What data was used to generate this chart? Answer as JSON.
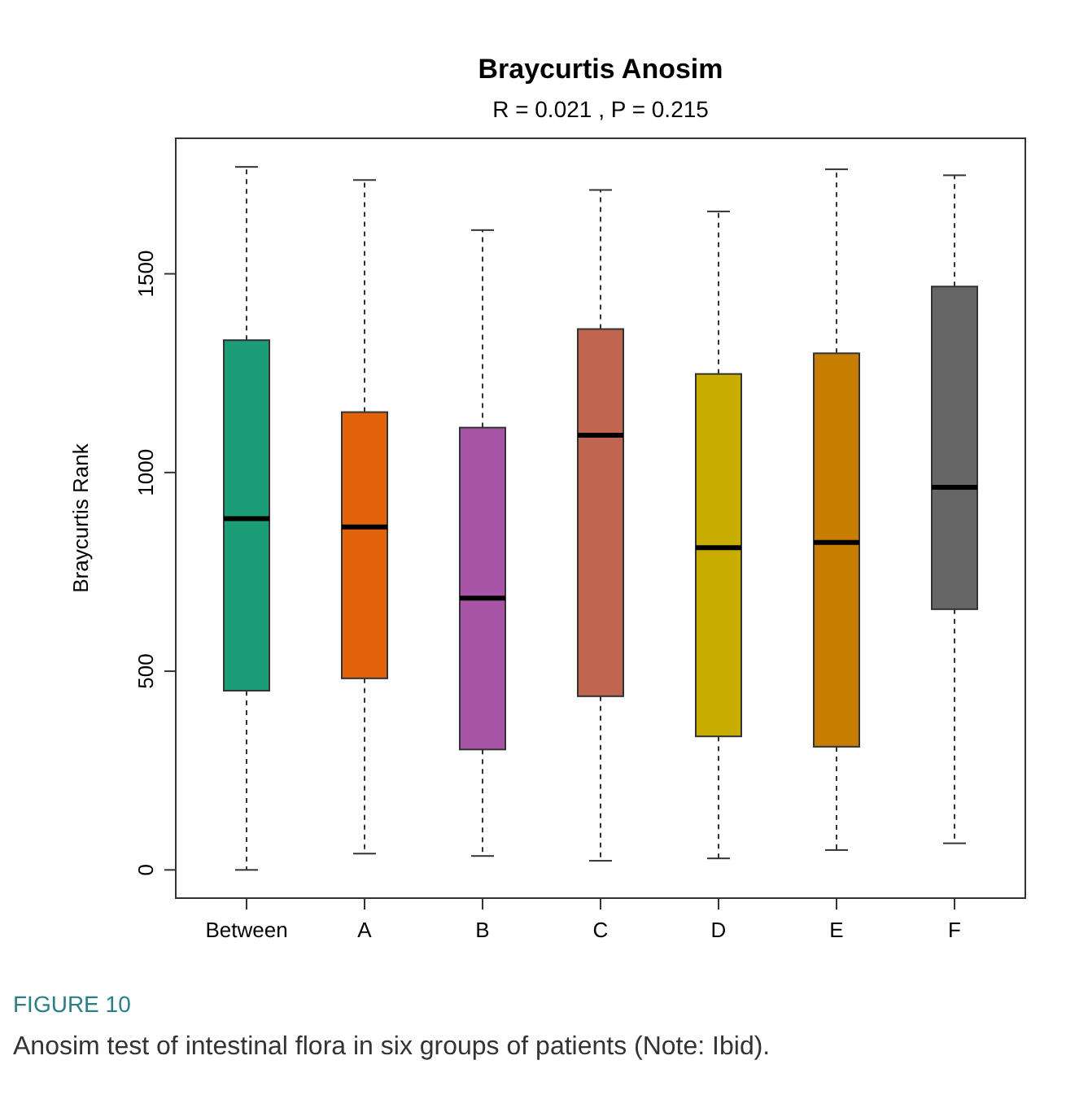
{
  "chart_data": {
    "type": "box",
    "title": "Braycurtis Anosim",
    "subtitle": "R =  0.021 ,  P =  0.215",
    "ylabel": "Braycurtis Rank",
    "categories": [
      "Between",
      "A",
      "B",
      "C",
      "D",
      "E",
      "F"
    ],
    "colors": [
      "#1b9e77",
      "#e2620c",
      "#a855a8",
      "#c0654f",
      "#c8ad00",
      "#c77d00",
      "#666666"
    ],
    "boxes": [
      {
        "low": 0,
        "q1": 451,
        "median": 884,
        "q3": 1333,
        "high": 1769
      },
      {
        "low": 41,
        "q1": 482,
        "median": 863,
        "q3": 1152,
        "high": 1736
      },
      {
        "low": 35,
        "q1": 303,
        "median": 684,
        "q3": 1113,
        "high": 1610
      },
      {
        "low": 23,
        "q1": 437,
        "median": 1094,
        "q3": 1361,
        "high": 1711
      },
      {
        "low": 29,
        "q1": 336,
        "median": 811,
        "q3": 1248,
        "high": 1657
      },
      {
        "low": 50,
        "q1": 310,
        "median": 824,
        "q3": 1300,
        "high": 1763
      },
      {
        "low": 67,
        "q1": 656,
        "median": 963,
        "q3": 1468,
        "high": 1748
      }
    ],
    "ylim": [
      -71,
      1841
    ],
    "yticks": [
      0,
      500,
      1000,
      1500
    ],
    "grid": false,
    "annotations": [
      "FIGURE 10",
      "Anosim test of intestinal flora in six groups of patients (Note: Ibid)."
    ]
  }
}
